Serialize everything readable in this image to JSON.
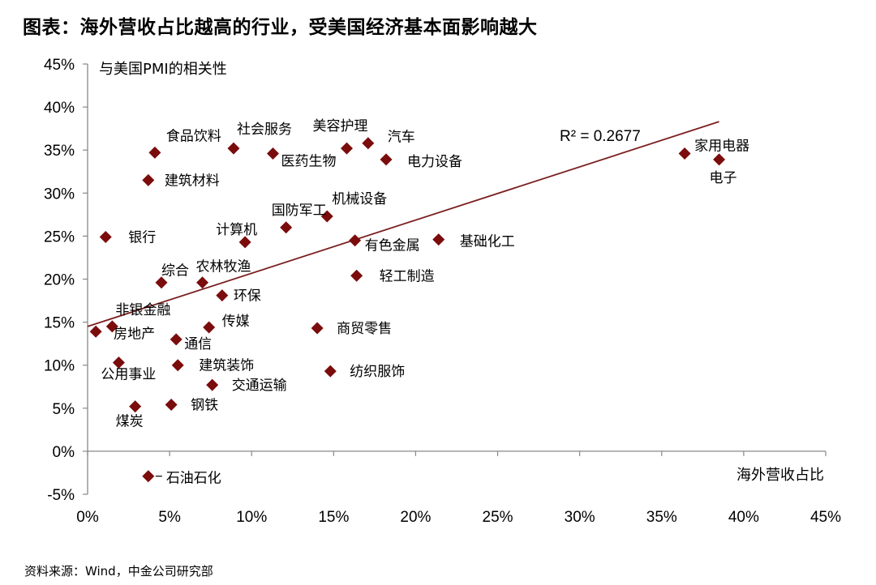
{
  "title": "图表：海外营收占比越高的行业，受美国经济基本面影响越大",
  "source": "资料来源：Wind，中金公司研究部",
  "colors": {
    "marker": "#7b0c0c",
    "trendline": "#7b1f1f",
    "axis": "#888888"
  },
  "chart_data": {
    "type": "scatter",
    "xlabel": "海外营收占比",
    "ylabel": "与美国PMI的相关性",
    "xlim": [
      0,
      45
    ],
    "ylim": [
      -5,
      45
    ],
    "x_ticks": [
      "0%",
      "5%",
      "10%",
      "15%",
      "20%",
      "25%",
      "30%",
      "35%",
      "40%",
      "45%"
    ],
    "y_ticks": [
      "45%",
      "40%",
      "35%",
      "30%",
      "25%",
      "20%",
      "15%",
      "10%",
      "5%",
      "0%",
      "-5%"
    ],
    "grid": false,
    "legend": "none",
    "trendline": {
      "r2_label": "R² = 0.2677",
      "x": [
        0,
        38.5
      ],
      "y": [
        14.5,
        38.3
      ]
    },
    "points": [
      {
        "label": "食品饮料",
        "x": 4.1,
        "y": 34.7
      },
      {
        "label": "社会服务",
        "x": 8.9,
        "y": 35.2
      },
      {
        "label": "医药生物",
        "x": 11.3,
        "y": 34.6
      },
      {
        "label": "美容护理",
        "x": 15.8,
        "y": 35.2
      },
      {
        "label": "汽车",
        "x": 17.1,
        "y": 35.8
      },
      {
        "label": "电力设备",
        "x": 18.2,
        "y": 33.9
      },
      {
        "label": "建筑材料",
        "x": 3.7,
        "y": 31.5
      },
      {
        "label": "家用电器",
        "x": 36.4,
        "y": 34.6
      },
      {
        "label": "电子",
        "x": 38.5,
        "y": 33.9
      },
      {
        "label": "国防军工",
        "x": 12.1,
        "y": 26.0
      },
      {
        "label": "机械设备",
        "x": 14.6,
        "y": 27.3
      },
      {
        "label": "计算机",
        "x": 9.6,
        "y": 24.3
      },
      {
        "label": "银行",
        "x": 1.1,
        "y": 24.9
      },
      {
        "label": "有色金属",
        "x": 16.3,
        "y": 24.5
      },
      {
        "label": "基础化工",
        "x": 21.4,
        "y": 24.6
      },
      {
        "label": "综合",
        "x": 4.5,
        "y": 19.6
      },
      {
        "label": "农林牧渔",
        "x": 7.0,
        "y": 19.6
      },
      {
        "label": "环保",
        "x": 8.2,
        "y": 18.1
      },
      {
        "label": "轻工制造",
        "x": 16.4,
        "y": 20.4
      },
      {
        "label": "非银金融",
        "x": 1.5,
        "y": 14.5
      },
      {
        "label": "房地产",
        "x": 0.5,
        "y": 13.9
      },
      {
        "label": "传媒",
        "x": 7.4,
        "y": 14.4
      },
      {
        "label": "通信",
        "x": 5.4,
        "y": 13.0
      },
      {
        "label": "商贸零售",
        "x": 14.0,
        "y": 14.3
      },
      {
        "label": "公用事业",
        "x": 1.9,
        "y": 10.3
      },
      {
        "label": "建筑装饰",
        "x": 5.5,
        "y": 10.0
      },
      {
        "label": "纺织服饰",
        "x": 14.8,
        "y": 9.3
      },
      {
        "label": "交通运输",
        "x": 7.6,
        "y": 7.7
      },
      {
        "label": "钢铁",
        "x": 5.1,
        "y": 5.4
      },
      {
        "label": "煤炭",
        "x": 2.9,
        "y": 5.2
      },
      {
        "label": "石油石化",
        "x": 3.7,
        "y": -2.9
      }
    ]
  }
}
